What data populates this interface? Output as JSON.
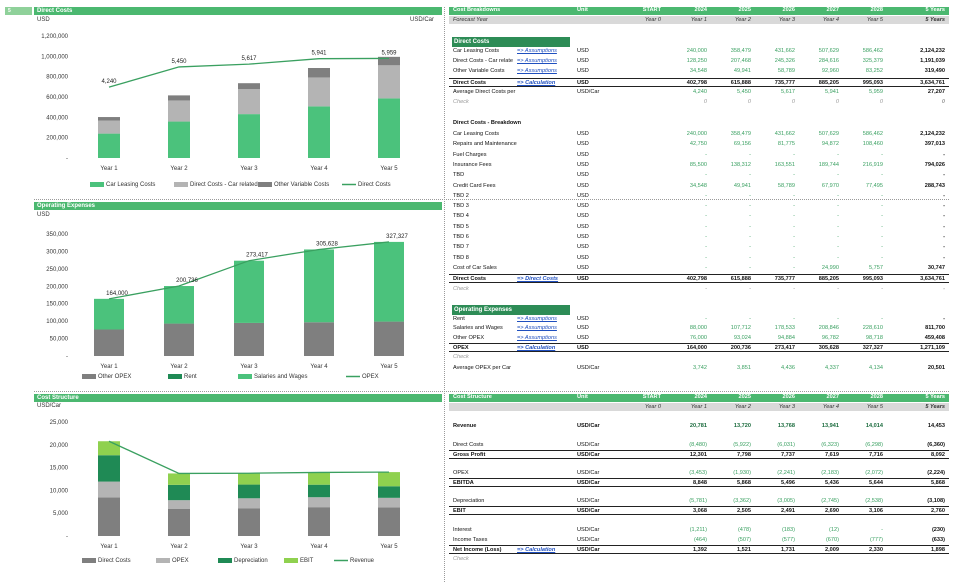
{
  "row_marker": "5",
  "left_panel": {
    "direct_costs": {
      "title": "Direct Costs",
      "unit_left": "USD",
      "unit_right": "USD/Car",
      "chart_data": {
        "type": "bar",
        "categories": [
          "Year 1",
          "Year 2",
          "Year 3",
          "Year 4",
          "Year 5"
        ],
        "series": [
          {
            "name": "Car Leasing Costs",
            "values": [
              240000,
              358479,
              431662,
              507629,
              586462
            ],
            "color": "#4bc27c"
          },
          {
            "name": "Direct Costs - Car related",
            "values": [
              128250,
              207468,
              245326,
              284616,
              325379
            ],
            "color": "#b4b4b4"
          },
          {
            "name": "Other Variable Costs",
            "values": [
              34548,
              49941,
              58789,
              92960,
              83252
            ],
            "color": "#7f7f7f"
          }
        ],
        "line": {
          "name": "Direct Costs",
          "values": [
            4240,
            5450,
            5617,
            5941,
            5959
          ],
          "color": "#3aa060"
        },
        "yticks": [
          "1,200,000",
          "1,000,000",
          "800,000",
          "600,000",
          "400,000",
          "200,000",
          "-"
        ],
        "ylim": [
          0,
          1200000
        ],
        "secondary_ylim": [
          0,
          7300
        ]
      }
    },
    "opex": {
      "title": "Operating Expenses",
      "unit_left": "USD",
      "chart_data": {
        "type": "bar",
        "categories": [
          "Year 1",
          "Year 2",
          "Year 3",
          "Year 4",
          "Year 5"
        ],
        "series": [
          {
            "name": "Other OPEX",
            "values": [
              76000,
              93024,
              94884,
              96782,
              98718
            ],
            "color": "#7f7f7f"
          },
          {
            "name": "Rent",
            "values": [
              0,
              0,
              0,
              0,
              0
            ],
            "color": "#1f8a55"
          },
          {
            "name": "Salaries and Wages",
            "values": [
              88000,
              107712,
              178533,
              208846,
              228610
            ],
            "color": "#4bc27c"
          }
        ],
        "line": {
          "name": "OPEX",
          "values": [
            164000,
            200736,
            273417,
            305628,
            327327
          ],
          "color": "#3aa060"
        },
        "yticks": [
          "350,000",
          "300,000",
          "250,000",
          "200,000",
          "150,000",
          "100,000",
          "50,000",
          "-"
        ],
        "ylim": [
          0,
          350000
        ]
      }
    },
    "structure": {
      "title": "Cost Structure",
      "unit_left": "USD/Car",
      "chart_data": {
        "type": "bar",
        "categories": [
          "Year 1",
          "Year 2",
          "Year 3",
          "Year 4",
          "Year 5"
        ],
        "series": [
          {
            "name": "Direct Costs",
            "values": [
              8480,
              5922,
              6031,
              6323,
              6298
            ],
            "color": "#7f7f7f"
          },
          {
            "name": "OPEX",
            "values": [
              3453,
              1930,
              2241,
              2183,
              2072
            ],
            "color": "#b4b4b4"
          },
          {
            "name": "Depreciation",
            "values": [
              5781,
              3362,
              3005,
              2745,
              2538
            ],
            "color": "#1f8a55"
          },
          {
            "name": "EBIT",
            "values": [
              3068,
              2505,
              2491,
              2690,
              3106
            ],
            "color": "#8fd14f"
          }
        ],
        "line": {
          "name": "Revenue",
          "values": [
            20781,
            13720,
            13768,
            13941,
            14014
          ],
          "color": "#3aa060"
        },
        "yticks": [
          "25,000",
          "20,000",
          "15,000",
          "10,000",
          "5,000",
          "-"
        ],
        "ylim": [
          0,
          25000
        ]
      }
    }
  },
  "right_panel": {
    "breakdown": {
      "header": [
        "Cost Breakdowns",
        "Unit",
        "START",
        "2024",
        "2025",
        "2026",
        "2027",
        "2028",
        "5 Years"
      ],
      "subheader": [
        "Forecast Year",
        "",
        "Year 0",
        "Year 1",
        "Year 2",
        "Year 3",
        "Year 4",
        "Year 5",
        "5 Years"
      ],
      "section1": "Direct Costs",
      "rows1": [
        {
          "c0": "Car Leasing Costs",
          "c1": "=> Assumptions",
          "u": "USD",
          "v": [
            "",
            "240,000",
            "358,479",
            "431,662",
            "507,629",
            "586,462",
            "2,124,232"
          ],
          "k": "g"
        },
        {
          "c0": "Direct Costs - Car relate",
          "c1": "=> Assumptions",
          "u": "USD",
          "v": [
            "",
            "128,250",
            "207,468",
            "245,326",
            "284,616",
            "325,379",
            "1,191,039"
          ],
          "k": "g"
        },
        {
          "c0": "Other Variable Costs",
          "c1": "=> Assumptions",
          "u": "USD",
          "v": [
            "",
            "34,548",
            "49,941",
            "58,789",
            "92,960",
            "83,252",
            "319,490"
          ],
          "k": "g"
        },
        {
          "c0": "Direct Costs",
          "c1": "=> Calculation",
          "u": "USD",
          "v": [
            "",
            "402,798",
            "615,888",
            "735,777",
            "885,205",
            "995,093",
            "3,634,761"
          ],
          "k": "bt"
        },
        {
          "c0": "Average Direct Costs per Car",
          "c1": "",
          "u": "USD/Car",
          "v": [
            "",
            "4,240",
            "5,450",
            "5,617",
            "5,941",
            "5,959",
            "27,207"
          ],
          "k": "g"
        },
        {
          "c0": "Check",
          "c1": "",
          "u": "",
          "v": [
            "",
            "0",
            "0",
            "0",
            "0",
            "0",
            "0"
          ],
          "k": "i"
        }
      ],
      "section2": "Direct Costs - Breakdown",
      "rows2": [
        {
          "c0": "Car Leasing Costs",
          "u": "USD",
          "v": [
            "",
            "240,000",
            "358,479",
            "431,662",
            "507,629",
            "586,462",
            "2,124,232"
          ],
          "k": "g"
        },
        {
          "c0": "Repairs and Maintenance",
          "u": "USD",
          "v": [
            "",
            "42,750",
            "69,156",
            "81,775",
            "94,872",
            "108,460",
            "397,013"
          ],
          "k": "g"
        },
        {
          "c0": "Fuel Charges",
          "u": "USD",
          "v": [
            "",
            "-",
            "-",
            "-",
            "-",
            "-",
            "-"
          ],
          "k": "g"
        },
        {
          "c0": "Insurance Fees",
          "u": "USD",
          "v": [
            "",
            "85,500",
            "138,312",
            "163,551",
            "189,744",
            "216,919",
            "794,026"
          ],
          "k": "g"
        },
        {
          "c0": "TBD",
          "u": "USD",
          "v": [
            "",
            "-",
            "-",
            "-",
            "-",
            "-",
            "-"
          ],
          "k": "g"
        },
        {
          "c0": "Credit Card Fees",
          "u": "USD",
          "v": [
            "",
            "34,548",
            "49,941",
            "58,789",
            "67,970",
            "77,495",
            "288,743"
          ],
          "k": "g"
        },
        {
          "c0": "TBD 2",
          "u": "USD",
          "v": [
            "",
            "-",
            "-",
            "-",
            "-",
            "-",
            "-"
          ],
          "k": "g"
        },
        {
          "c0": "TBD 3",
          "u": "USD",
          "v": [
            "",
            "-",
            "-",
            "-",
            "-",
            "-",
            "-"
          ],
          "k": "g"
        },
        {
          "c0": "TBD 4",
          "u": "USD",
          "v": [
            "",
            "-",
            "-",
            "-",
            "-",
            "-",
            "-"
          ],
          "k": "g"
        },
        {
          "c0": "TBD 5",
          "u": "USD",
          "v": [
            "",
            "-",
            "-",
            "-",
            "-",
            "-",
            "-"
          ],
          "k": "g"
        },
        {
          "c0": "TBD 6",
          "u": "USD",
          "v": [
            "",
            "-",
            "-",
            "-",
            "-",
            "-",
            "-"
          ],
          "k": "g"
        },
        {
          "c0": "TBD 7",
          "u": "USD",
          "v": [
            "",
            "-",
            "-",
            "-",
            "-",
            "-",
            "-"
          ],
          "k": "g"
        },
        {
          "c0": "TBD 8",
          "u": "USD",
          "v": [
            "",
            "-",
            "-",
            "-",
            "-",
            "-",
            "-"
          ],
          "k": "g"
        },
        {
          "c0": "Cost of Car Sales",
          "u": "USD",
          "v": [
            "",
            "-",
            "-",
            "-",
            "24,990",
            "5,757",
            "30,747"
          ],
          "k": "g"
        },
        {
          "c0": "Direct Costs",
          "c1": "=> Direct Costs",
          "u": "USD",
          "v": [
            "",
            "402,798",
            "615,888",
            "735,777",
            "885,205",
            "995,093",
            "3,634,761"
          ],
          "k": "bt"
        },
        {
          "c0": "Check",
          "u": "",
          "v": [
            "",
            "-",
            "-",
            "-",
            "-",
            "-",
            "-"
          ],
          "k": "i"
        }
      ],
      "section3": "Operating Expenses",
      "rows3": [
        {
          "c0": "Rent",
          "c1": "=> Assumptions",
          "u": "USD",
          "v": [
            "",
            "-",
            "-",
            "-",
            "-",
            "-",
            "-"
          ],
          "k": "g"
        },
        {
          "c0": "Salaries and Wages",
          "c1": "=> Assumptions",
          "u": "USD",
          "v": [
            "",
            "88,000",
            "107,712",
            "178,533",
            "208,846",
            "228,610",
            "811,700"
          ],
          "k": "g"
        },
        {
          "c0": "Other OPEX",
          "c1": "=> Assumptions",
          "u": "USD",
          "v": [
            "",
            "76,000",
            "93,024",
            "94,884",
            "96,782",
            "98,718",
            "459,408"
          ],
          "k": "g"
        },
        {
          "c0": "OPEX",
          "c1": "=> Calculation",
          "u": "USD",
          "v": [
            "",
            "164,000",
            "200,736",
            "273,417",
            "305,628",
            "327,327",
            "1,271,109"
          ],
          "k": "bt"
        },
        {
          "c0": "Check",
          "u": "",
          "v": [
            "",
            "",
            "",
            "",
            "",
            "",
            ""
          ],
          "k": "i"
        },
        {
          "c0": "Average OPEX per Car",
          "u": "USD/Car",
          "v": [
            "",
            "3,742",
            "3,851",
            "4,436",
            "4,337",
            "4,134",
            "20,501"
          ],
          "k": "g"
        }
      ]
    },
    "structure": {
      "header": [
        "Cost Structure",
        "Unit",
        "START",
        "2024",
        "2025",
        "2026",
        "2027",
        "2028",
        "5 Years"
      ],
      "subheader": [
        "",
        "",
        "Year 0",
        "Year 1",
        "Year 2",
        "Year 3",
        "Year 4",
        "Year 5",
        "5 Years"
      ],
      "rows": [
        {
          "c0": "Revenue",
          "u": "USD/Car",
          "v": [
            "",
            "20,781",
            "13,720",
            "13,768",
            "13,941",
            "14,014",
            "14,453"
          ],
          "k": "pb",
          "y": 426
        },
        {
          "c0": "Direct Costs",
          "u": "USD/Car",
          "v": [
            "",
            "(8,480)",
            "(5,922)",
            "(6,031)",
            "(6,323)",
            "(6,298)",
            "(6,360)"
          ],
          "k": "g",
          "y": 445
        },
        {
          "c0": "Gross Profit",
          "u": "USD/Car",
          "v": [
            "",
            "12,301",
            "7,798",
            "7,737",
            "7,619",
            "7,716",
            "8,092"
          ],
          "k": "bt",
          "y": 454
        },
        {
          "c0": "OPEX",
          "u": "USD/Car",
          "v": [
            "",
            "(3,453)",
            "(1,930)",
            "(2,241)",
            "(2,183)",
            "(2,072)",
            "(2,224)"
          ],
          "k": "g",
          "y": 473
        },
        {
          "c0": "EBITDA",
          "u": "USD/Car",
          "v": [
            "",
            "8,848",
            "5,868",
            "5,496",
            "5,436",
            "5,644",
            "5,868"
          ],
          "k": "bt",
          "y": 482
        },
        {
          "c0": "Depreciation",
          "u": "USD/Car",
          "v": [
            "",
            "(5,781)",
            "(3,362)",
            "(3,005)",
            "(2,745)",
            "(2,538)",
            "(3,108)"
          ],
          "k": "g",
          "y": 501
        },
        {
          "c0": "EBIT",
          "u": "USD/Car",
          "v": [
            "",
            "3,068",
            "2,505",
            "2,491",
            "2,690",
            "3,106",
            "2,760"
          ],
          "k": "bt",
          "y": 510
        },
        {
          "c0": "Interest",
          "u": "USD/Car",
          "v": [
            "",
            "(1,211)",
            "(478)",
            "(183)",
            "(12)",
            "-",
            "(230)"
          ],
          "k": "g",
          "y": 530
        },
        {
          "c0": "Income Taxes",
          "u": "USD/Car",
          "v": [
            "",
            "(464)",
            "(507)",
            "(577)",
            "(670)",
            "(777)",
            "(633)"
          ],
          "k": "g",
          "y": 540
        },
        {
          "c0": "Net Income (Loss)",
          "c1": "=> Calculation",
          "u": "USD/Car",
          "v": [
            "",
            "1,392",
            "1,521",
            "1,731",
            "2,009",
            "2,330",
            "1,898"
          ],
          "k": "bt",
          "y": 549
        },
        {
          "c0": "Check",
          "u": "",
          "v": [
            "",
            "",
            "",
            "",
            "",
            "",
            ""
          ],
          "k": "i",
          "y": 559
        }
      ]
    }
  }
}
